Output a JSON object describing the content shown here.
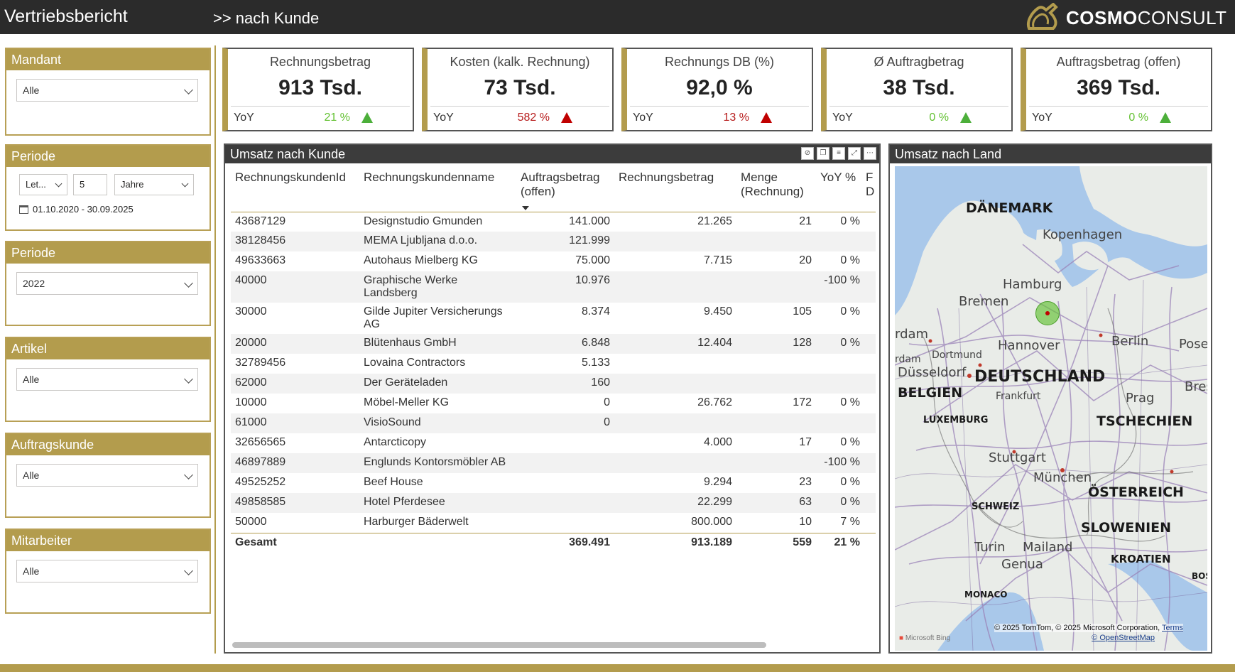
{
  "header": {
    "title": "Vertriebsbericht",
    "subtitle": ">>  nach Kunde",
    "logo_bold": "COSMO",
    "logo_light": "CONSULT"
  },
  "slicers": {
    "mandant": {
      "label": "Mandant",
      "value": "Alle"
    },
    "periode1": {
      "label": "Periode",
      "mode": "Let...",
      "count": "5",
      "unit": "Jahre",
      "range": "01.10.2020 - 30.09.2025"
    },
    "periode2": {
      "label": "Periode",
      "value": "2022"
    },
    "artikel": {
      "label": "Artikel",
      "value": "Alle"
    },
    "auftragskunde": {
      "label": "Auftragskunde",
      "value": "Alle"
    },
    "mitarbeiter": {
      "label": "Mitarbeiter",
      "value": "Alle"
    }
  },
  "kpis": [
    {
      "title": "Rechnungsbetrag",
      "value": "913 Tsd.",
      "yoy_label": "YoY",
      "yoy": "21 %",
      "trend": "up",
      "color": "#63c132"
    },
    {
      "title": "Kosten (kalk. Rechnung)",
      "value": "73 Tsd.",
      "yoy_label": "YoY",
      "yoy": "582 %",
      "trend": "up",
      "color": "#c00000"
    },
    {
      "title": "Rechnungs DB (%)",
      "value": "92,0 %",
      "yoy_label": "YoY",
      "yoy": "13 %",
      "trend": "up",
      "color": "#c00000"
    },
    {
      "title": "Ø Auftragbetrag",
      "value": "38 Tsd.",
      "yoy_label": "YoY",
      "yoy": "0 %",
      "trend": "up",
      "color": "#63c132"
    },
    {
      "title": "Auftragsbetrag (offen)",
      "value": "369 Tsd.",
      "yoy_label": "YoY",
      "yoy": "0 %",
      "trend": "up",
      "color": "#63c132"
    }
  ],
  "table": {
    "title": "Umsatz nach Kunde",
    "columns": [
      "RechnungskundenId",
      "Rechnungskundenname",
      "Auftragsbetrag (offen)",
      "Rechnungsbetrag",
      "Menge (Rechnung)",
      "YoY %",
      "F D"
    ],
    "rows": [
      [
        "43687129",
        "Designstudio Gmunden",
        "141.000",
        "21.265",
        "21",
        "0 %"
      ],
      [
        "38128456",
        "MEMA Ljubljana d.o.o.",
        "121.999",
        "",
        "",
        ""
      ],
      [
        "49633663",
        "Autohaus Mielberg KG",
        "75.000",
        "7.715",
        "20",
        "0 %"
      ],
      [
        "40000",
        "Graphische Werke Landsberg",
        "10.976",
        "",
        "",
        "-100 %"
      ],
      [
        "30000",
        "Gilde Jupiter Versicherungs AG",
        "8.374",
        "9.450",
        "105",
        "0 %"
      ],
      [
        "20000",
        "Blütenhaus GmbH",
        "6.848",
        "12.404",
        "128",
        "0 %"
      ],
      [
        "32789456",
        "Lovaina Contractors",
        "5.133",
        "",
        "",
        ""
      ],
      [
        "62000",
        "Der Geräteladen",
        "160",
        "",
        "",
        ""
      ],
      [
        "10000",
        "Möbel-Meller KG",
        "0",
        "26.762",
        "172",
        "0 %"
      ],
      [
        "61000",
        "VisioSound",
        "0",
        "",
        "",
        ""
      ],
      [
        "32656565",
        "Antarcticopy",
        "",
        "4.000",
        "17",
        "0 %"
      ],
      [
        "46897889",
        "Englunds Kontorsmöbler AB",
        "",
        "",
        "",
        "-100 %"
      ],
      [
        "49525252",
        "Beef House",
        "",
        "9.294",
        "23",
        "0 %"
      ],
      [
        "49858585",
        "Hotel Pferdesee",
        "",
        "22.299",
        "63",
        "0 %"
      ],
      [
        "50000",
        "Harburger Bäderwelt",
        "",
        "800.000",
        "10",
        "7 %"
      ]
    ],
    "total": [
      "Gesamt",
      "",
      "369.491",
      "913.189",
      "559",
      "21 %"
    ]
  },
  "map": {
    "title": "Umsatz nach Land",
    "countries": [
      "DÄNEMARK",
      "DEUTSCHLAND",
      "BELGIEN",
      "LUXEMBURG",
      "TSCHECHIEN",
      "ÖSTERREICH",
      "SCHWEIZ",
      "SLOWENIEN",
      "KROATIEN",
      "MONACO",
      "BOS"
    ],
    "cities": [
      "Kopenhagen",
      "Hamburg",
      "Bremen",
      "rdam",
      "Dortmund",
      "rdam",
      "Düsseldorf",
      "Hannover",
      "Berlin",
      "Pose",
      "Frankfurt",
      "Bresl",
      "Prag",
      "Stuttgart",
      "München",
      "Turin",
      "Mailand",
      "Genua"
    ],
    "copyright": "© 2025 TomTom, © 2025 Microsoft Corporation,",
    "terms": "Terms",
    "osm": "© OpenStreetMap",
    "bing": "Microsoft Bing"
  }
}
